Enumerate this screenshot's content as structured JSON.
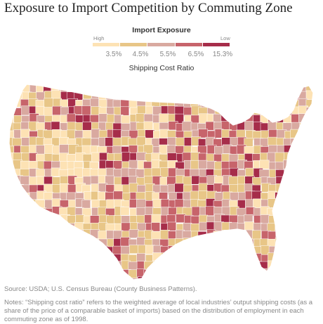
{
  "title": "Exposure to Import Competition by Commuting Zone",
  "legend": {
    "title": "Import Exposure",
    "high_label": "High",
    "low_label": "Low",
    "colors": [
      "#fde2b4",
      "#e8c687",
      "#d9a9a0",
      "#c7646b",
      "#a62d4a"
    ],
    "ticks": [
      "3.5%",
      "4.5%",
      "5.5%",
      "6.5%",
      "15.3%"
    ],
    "subtitle": "Shipping Cost Ratio"
  },
  "map": {
    "region": "contiguous-united-states",
    "unit": "commuting-zone"
  },
  "source": "Source: USDA; U.S. Census Bureau (County Business Patterns).",
  "notes": "Notes: “Shipping cost ratio” refers to the weighted average of local industries’ output shipping costs (as a share of the price of a comparable basket of imports) based on the distribution of employment in each commuting zone as of 1998."
}
